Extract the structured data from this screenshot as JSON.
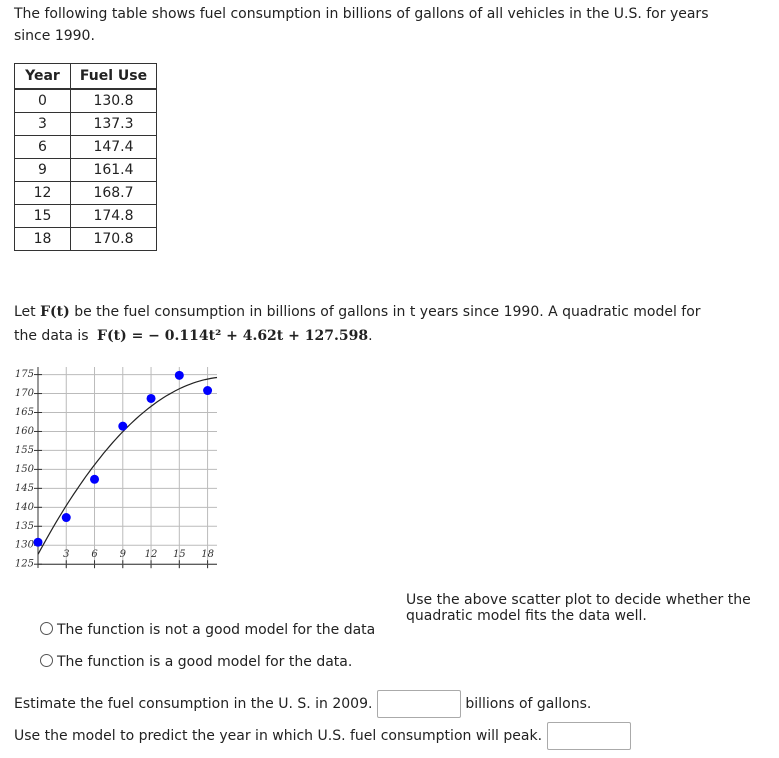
{
  "intro": "The following table shows fuel consumption in billions of gallons of all vehicles in the U.S. for years since 1990.",
  "table": {
    "headers": [
      "Year",
      "Fuel Use"
    ],
    "rows": [
      [
        0,
        130.8
      ],
      [
        3,
        137.3
      ],
      [
        6,
        147.4
      ],
      [
        9,
        161.4
      ],
      [
        12,
        168.7
      ],
      [
        15,
        174.8
      ],
      [
        18,
        170.8
      ]
    ]
  },
  "model": {
    "parts": [
      "Let ",
      "F(t)",
      " be the fuel consumption in billions of gallons in t years since 1990. A quadratic model for the data is ",
      "F(t) = − 0.114t² + 4.62t + 127.598",
      "."
    ]
  },
  "plot": {
    "xlim": [
      0,
      19
    ],
    "ylim": [
      124,
      177
    ],
    "xticks": [
      3,
      6,
      9,
      12,
      15,
      18
    ],
    "yticks": [
      125,
      130,
      135,
      140,
      145,
      150,
      155,
      160,
      165,
      170,
      175
    ],
    "point_color": "#0000ff",
    "curve": {
      "a": -0.114,
      "b": 4.62,
      "c": 127.598
    }
  },
  "question1": "Use the above scatter plot to decide whether the quadratic model fits the data well.",
  "options": [
    "The function is not a good model for the data",
    "The function is a good model for the data."
  ],
  "question2": {
    "before": "Estimate the fuel consumption in the U. S. in 2009.",
    "after": "billions of gallons."
  },
  "question3": "Use the model to predict the year in which U.S. fuel consumption will peak."
}
